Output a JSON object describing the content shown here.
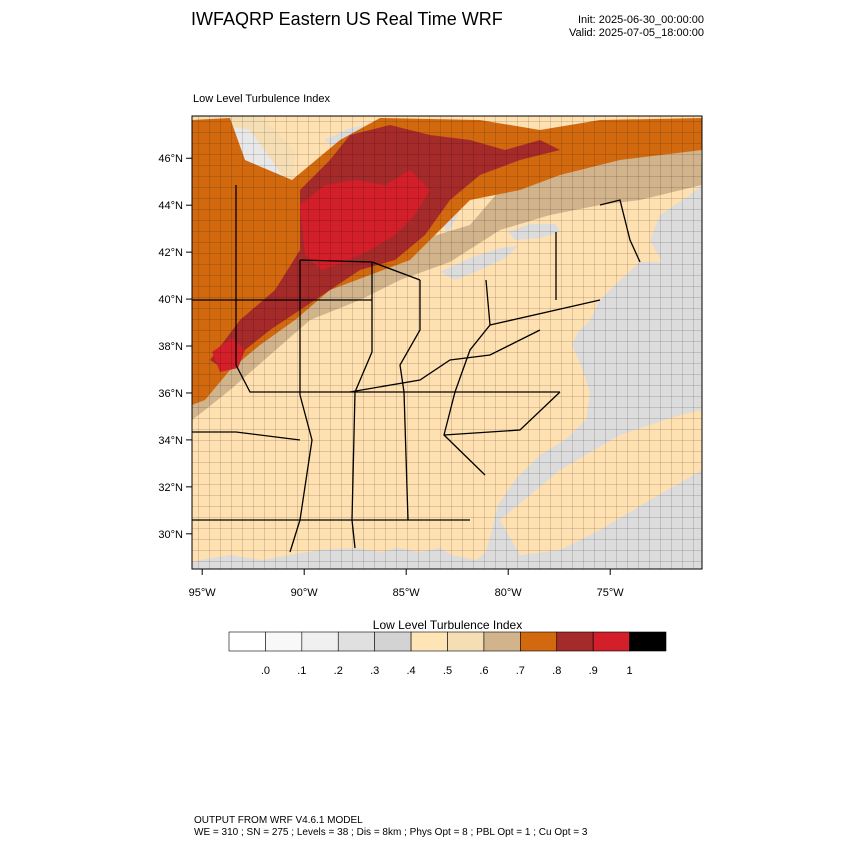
{
  "header": {
    "title": "IWFAQRP Eastern US Real Time WRF",
    "init": "Init: 2025-06-30_00:00:00",
    "valid": "Valid: 2025-07-05_18:00:00"
  },
  "map": {
    "field_label": "Low Level Turbulence Index",
    "lat_labels": [
      "46°N",
      "44°N",
      "42°N",
      "40°N",
      "38°N",
      "36°N",
      "34°N",
      "32°N",
      "30°N"
    ],
    "lat_values": [
      46,
      44,
      42,
      40,
      38,
      36,
      34,
      32,
      30
    ],
    "lon_labels": [
      "95°W",
      "90°W",
      "85°W",
      "80°W",
      "75°W"
    ],
    "lon_values": [
      -95,
      -90,
      -85,
      -80,
      -75
    ],
    "extent": {
      "lon_min": -95.5,
      "lon_max": -70.5,
      "lat_min": 28.5,
      "lat_max": 47.8
    },
    "colors": {
      "ocean": "#dcdcdc",
      "land_base": "#ffe0b0",
      "tan": "#d2b48c",
      "orange": "#d2690f",
      "dark_red": "#a52a2a",
      "red": "#d21f2a",
      "light_gray": "#e8e8e8",
      "beige": "#f5deb3",
      "boundary": "#000000"
    }
  },
  "legend": {
    "title": "Low Level Turbulence Index",
    "colors": [
      "#ffffff",
      "#f8f8f8",
      "#f0f0f0",
      "#e0e0e0",
      "#d3d3d3",
      "#ffe4b5",
      "#f5deb3",
      "#d2b48c",
      "#d2690f",
      "#a52a2a",
      "#d21f2a",
      "#000000"
    ],
    "labels": [
      ".0",
      ".1",
      ".2",
      ".3",
      ".4",
      ".5",
      ".6",
      ".7",
      ".8",
      ".9",
      "1"
    ]
  },
  "footer": {
    "line1": "OUTPUT FROM WRF V4.6.1 MODEL",
    "line2": "WE = 310 ; SN = 275 ; Levels = 38 ; Dis = 8km ; Phys Opt = 8 ; PBL Opt = 1 ; Cu Opt = 3"
  }
}
